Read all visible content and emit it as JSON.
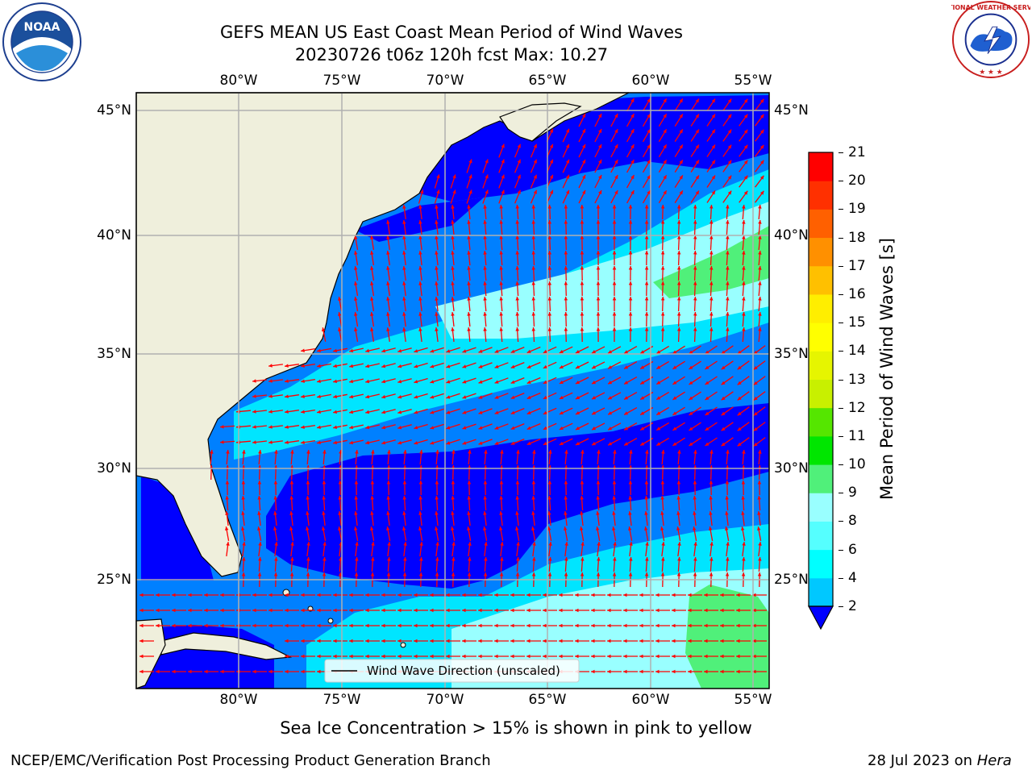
{
  "header": {
    "title": "GEFS MEAN US East Coast Mean Period of Wind Waves",
    "subtitle": "20230726 t06z 120h fcst   Max: 10.27"
  },
  "logos": {
    "noaa_text": "NOAA",
    "nws_text": "NATIONAL WEATHER SERVICE"
  },
  "map": {
    "lon_labels": [
      "80°W",
      "75°W",
      "70°W",
      "65°W",
      "60°W",
      "55°W"
    ],
    "lat_labels": [
      "45°N",
      "40°N",
      "35°N",
      "30°N",
      "25°N"
    ],
    "lon_range": [
      -85,
      -54
    ],
    "lat_range": [
      20,
      46
    ],
    "legend_text": "Wind Wave Direction (unscaled)",
    "colors": {
      "land": "#efefdc",
      "ocean_2_4": "#0000ff",
      "ocean_4_6": "#0080ff",
      "ocean_6_8": "#00e5ff",
      "ocean_8_9": "#99ffff",
      "ocean_9_10": "#50f07a",
      "arrow": "#ff0000",
      "grid": "#b0b0b0"
    }
  },
  "colorbar": {
    "label": "Mean Period of Wind Waves [s]",
    "ticks": [
      "2",
      "4",
      "6",
      "8",
      "9",
      "10",
      "11",
      "12",
      "13",
      "14",
      "15",
      "16",
      "17",
      "18",
      "19",
      "20",
      "21"
    ],
    "colors": [
      "#0055ff",
      "#00c8ff",
      "#00ffff",
      "#55ffff",
      "#99ffff",
      "#50f07a",
      "#00e600",
      "#55e600",
      "#c8f000",
      "#e6f500",
      "#ffff00",
      "#ffee00",
      "#ffc000",
      "#ff9000",
      "#ff6000",
      "#ff3000",
      "#ff0000"
    ],
    "extend_color": "#0000ff"
  },
  "footer": {
    "note": "Sea Ice Concentration > 15% is shown in pink to yellow",
    "org": "NCEP/EMC/Verification Post Processing Product Generation Branch",
    "date_prefix": "28 Jul 2023 on",
    "date_host": "Hera"
  }
}
